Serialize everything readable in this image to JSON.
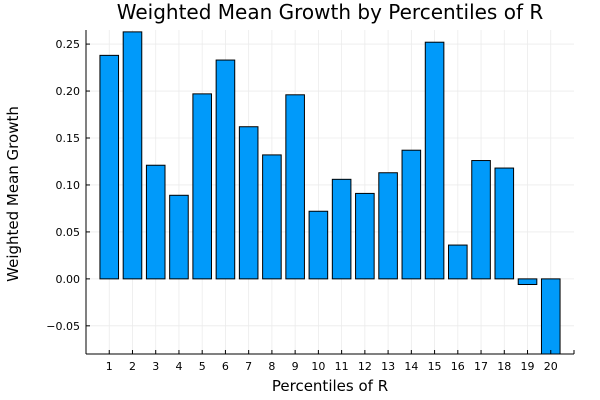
{
  "chart_data": {
    "type": "bar",
    "title": "Weighted Mean Growth by Percentiles of R",
    "xlabel": "Percentiles of R",
    "ylabel": "Weighted Mean Growth",
    "categories": [
      "1",
      "2",
      "3",
      "4",
      "5",
      "6",
      "7",
      "8",
      "9",
      "10",
      "11",
      "12",
      "13",
      "14",
      "15",
      "16",
      "17",
      "18",
      "19",
      "20"
    ],
    "values": [
      0.238,
      0.263,
      0.121,
      0.089,
      0.197,
      0.233,
      0.162,
      0.132,
      0.196,
      0.072,
      0.106,
      0.091,
      0.113,
      0.137,
      0.252,
      0.036,
      0.126,
      0.118,
      -0.006,
      -0.08
    ],
    "ylim": [
      -0.08,
      0.265
    ],
    "xlim": [
      0,
      21
    ],
    "yticks": [
      -0.05,
      0.0,
      0.05,
      0.1,
      0.15,
      0.2,
      0.25
    ],
    "ytick_labels": [
      "−0.05",
      "0.00",
      "0.05",
      "0.10",
      "0.15",
      "0.20",
      "0.25"
    ],
    "grid": true,
    "legend": "none",
    "colors": {
      "bar_fill": "#009AFA",
      "bar_stroke": "#000000",
      "grid": "#EBEBEB",
      "axis": "#000000"
    }
  }
}
